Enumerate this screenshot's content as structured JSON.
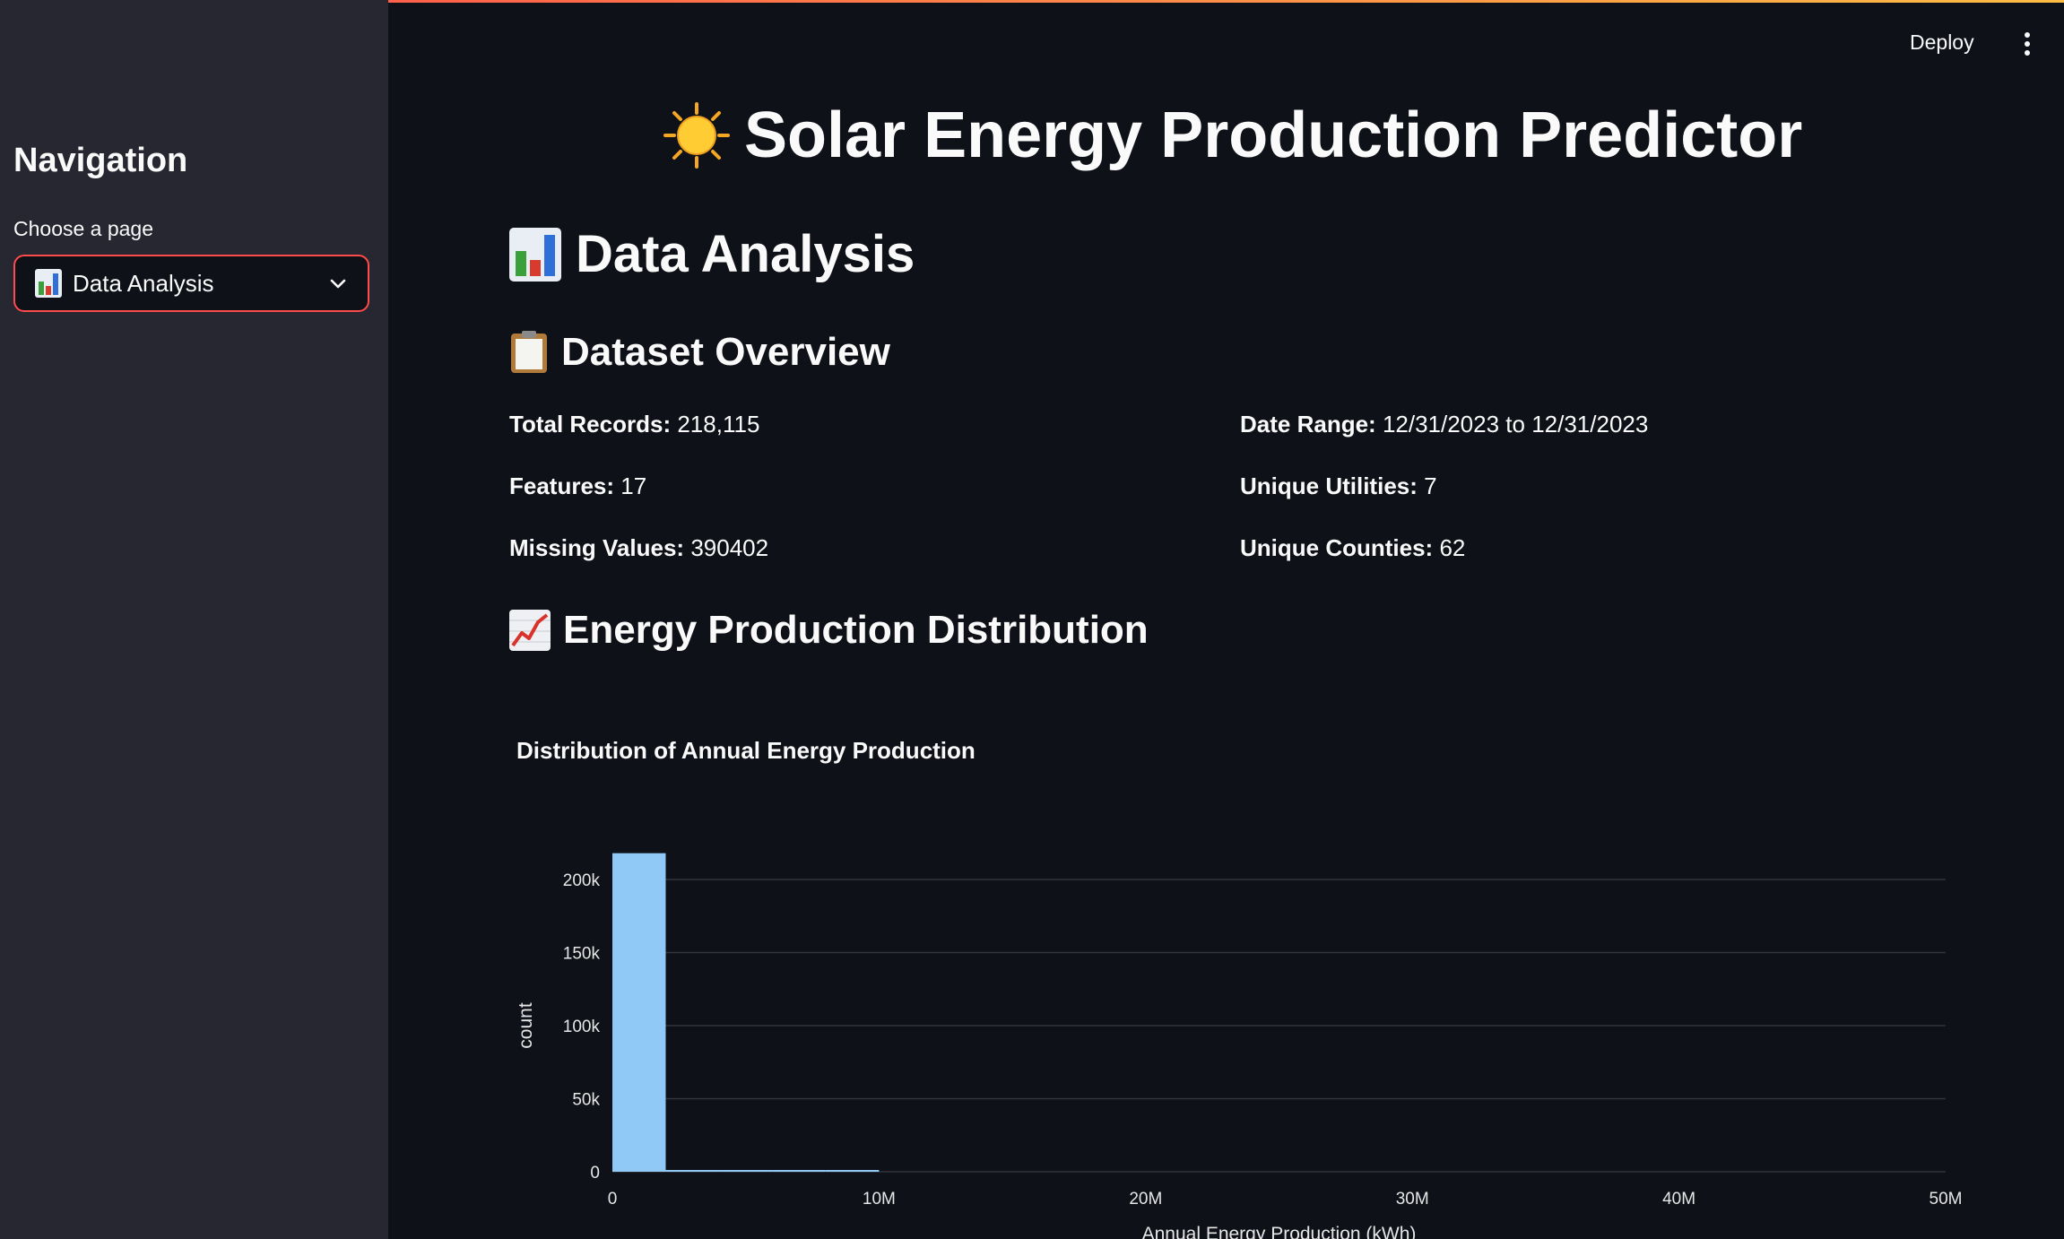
{
  "sidebar": {
    "title": "Navigation",
    "select_label": "Choose a page",
    "selected_page": "Data Analysis",
    "selected_icon": "bar-chart-icon"
  },
  "header": {
    "deploy_label": "Deploy",
    "menu_icon": "kebab-menu-icon"
  },
  "main": {
    "title": "Solar Energy Production Predictor",
    "title_icon": "sun-icon",
    "section_title": "Data Analysis",
    "section_icon": "bar-chart-icon",
    "overview_title": "Dataset Overview",
    "overview_icon": "clipboard-icon",
    "stats_left": [
      {
        "label": "Total Records:",
        "value": "218,115"
      },
      {
        "label": "Features:",
        "value": "17"
      },
      {
        "label": "Missing Values:",
        "value": "390402"
      }
    ],
    "stats_right": [
      {
        "label": "Date Range:",
        "value": "12/31/2023 to 12/31/2023"
      },
      {
        "label": "Unique Utilities:",
        "value": "7"
      },
      {
        "label": "Unique Counties:",
        "value": "62"
      }
    ],
    "distribution_title": "Energy Production Distribution",
    "distribution_icon": "chart-increasing-icon"
  },
  "chart_data": {
    "type": "bar",
    "title": "Distribution of Annual Energy Production",
    "xlabel": "Annual Energy Production (kWh)",
    "ylabel": "count",
    "x_ticks": [
      "0",
      "10M",
      "20M",
      "30M",
      "40M",
      "50M"
    ],
    "y_ticks": [
      "0",
      "50k",
      "100k",
      "150k",
      "200k"
    ],
    "xlim": [
      0,
      50000000
    ],
    "ylim": [
      0,
      200000
    ],
    "grid": true,
    "bar_color": "#90c8f6",
    "bins": [
      {
        "x0": 0,
        "x1": 2000000,
        "count": 218000
      },
      {
        "x0": 2000000,
        "x1": 4000000,
        "count": 80
      },
      {
        "x0": 4000000,
        "x1": 6000000,
        "count": 20
      },
      {
        "x0": 6000000,
        "x1": 8000000,
        "count": 8
      },
      {
        "x0": 8000000,
        "x1": 10000000,
        "count": 5
      }
    ]
  }
}
